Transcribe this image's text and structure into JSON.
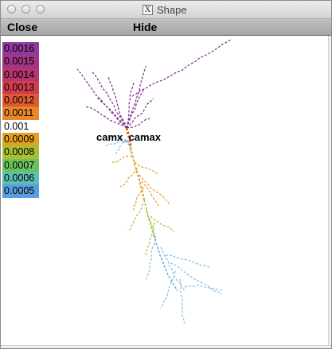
{
  "window": {
    "title": "Shape",
    "app_icon": "x11-icon"
  },
  "menu": {
    "close_label": "Close",
    "hide_label": "Hide"
  },
  "legend": {
    "entries": [
      {
        "label": "0.0016",
        "color": "#8e3a9e"
      },
      {
        "label": "0.0015",
        "color": "#a23585"
      },
      {
        "label": "0.0014",
        "color": "#b7356c"
      },
      {
        "label": "0.0013",
        "color": "#cf3e4e"
      },
      {
        "label": "0.0012",
        "color": "#df5a30"
      },
      {
        "label": "0.0011",
        "color": "#e8862a"
      },
      {
        "label": "0.001",
        "color": "#ffffff"
      },
      {
        "label": "0.0009",
        "color": "#e2a11e"
      },
      {
        "label": "0.0008",
        "color": "#a8bf34"
      },
      {
        "label": "0.0007",
        "color": "#6cc25a"
      },
      {
        "label": "0.0006",
        "color": "#5dbfb2"
      },
      {
        "label": "0.0005",
        "color": "#5a9ee0"
      }
    ]
  },
  "plot": {
    "section_label": "camx_camax",
    "colors": {
      "apical_tuft": "#7a2a8a",
      "soma": "#e05a20",
      "trunk": "#e39a1f",
      "mid": "#9ac43c",
      "lower": "#6aaed6",
      "basal": "#7cc0e6"
    }
  }
}
